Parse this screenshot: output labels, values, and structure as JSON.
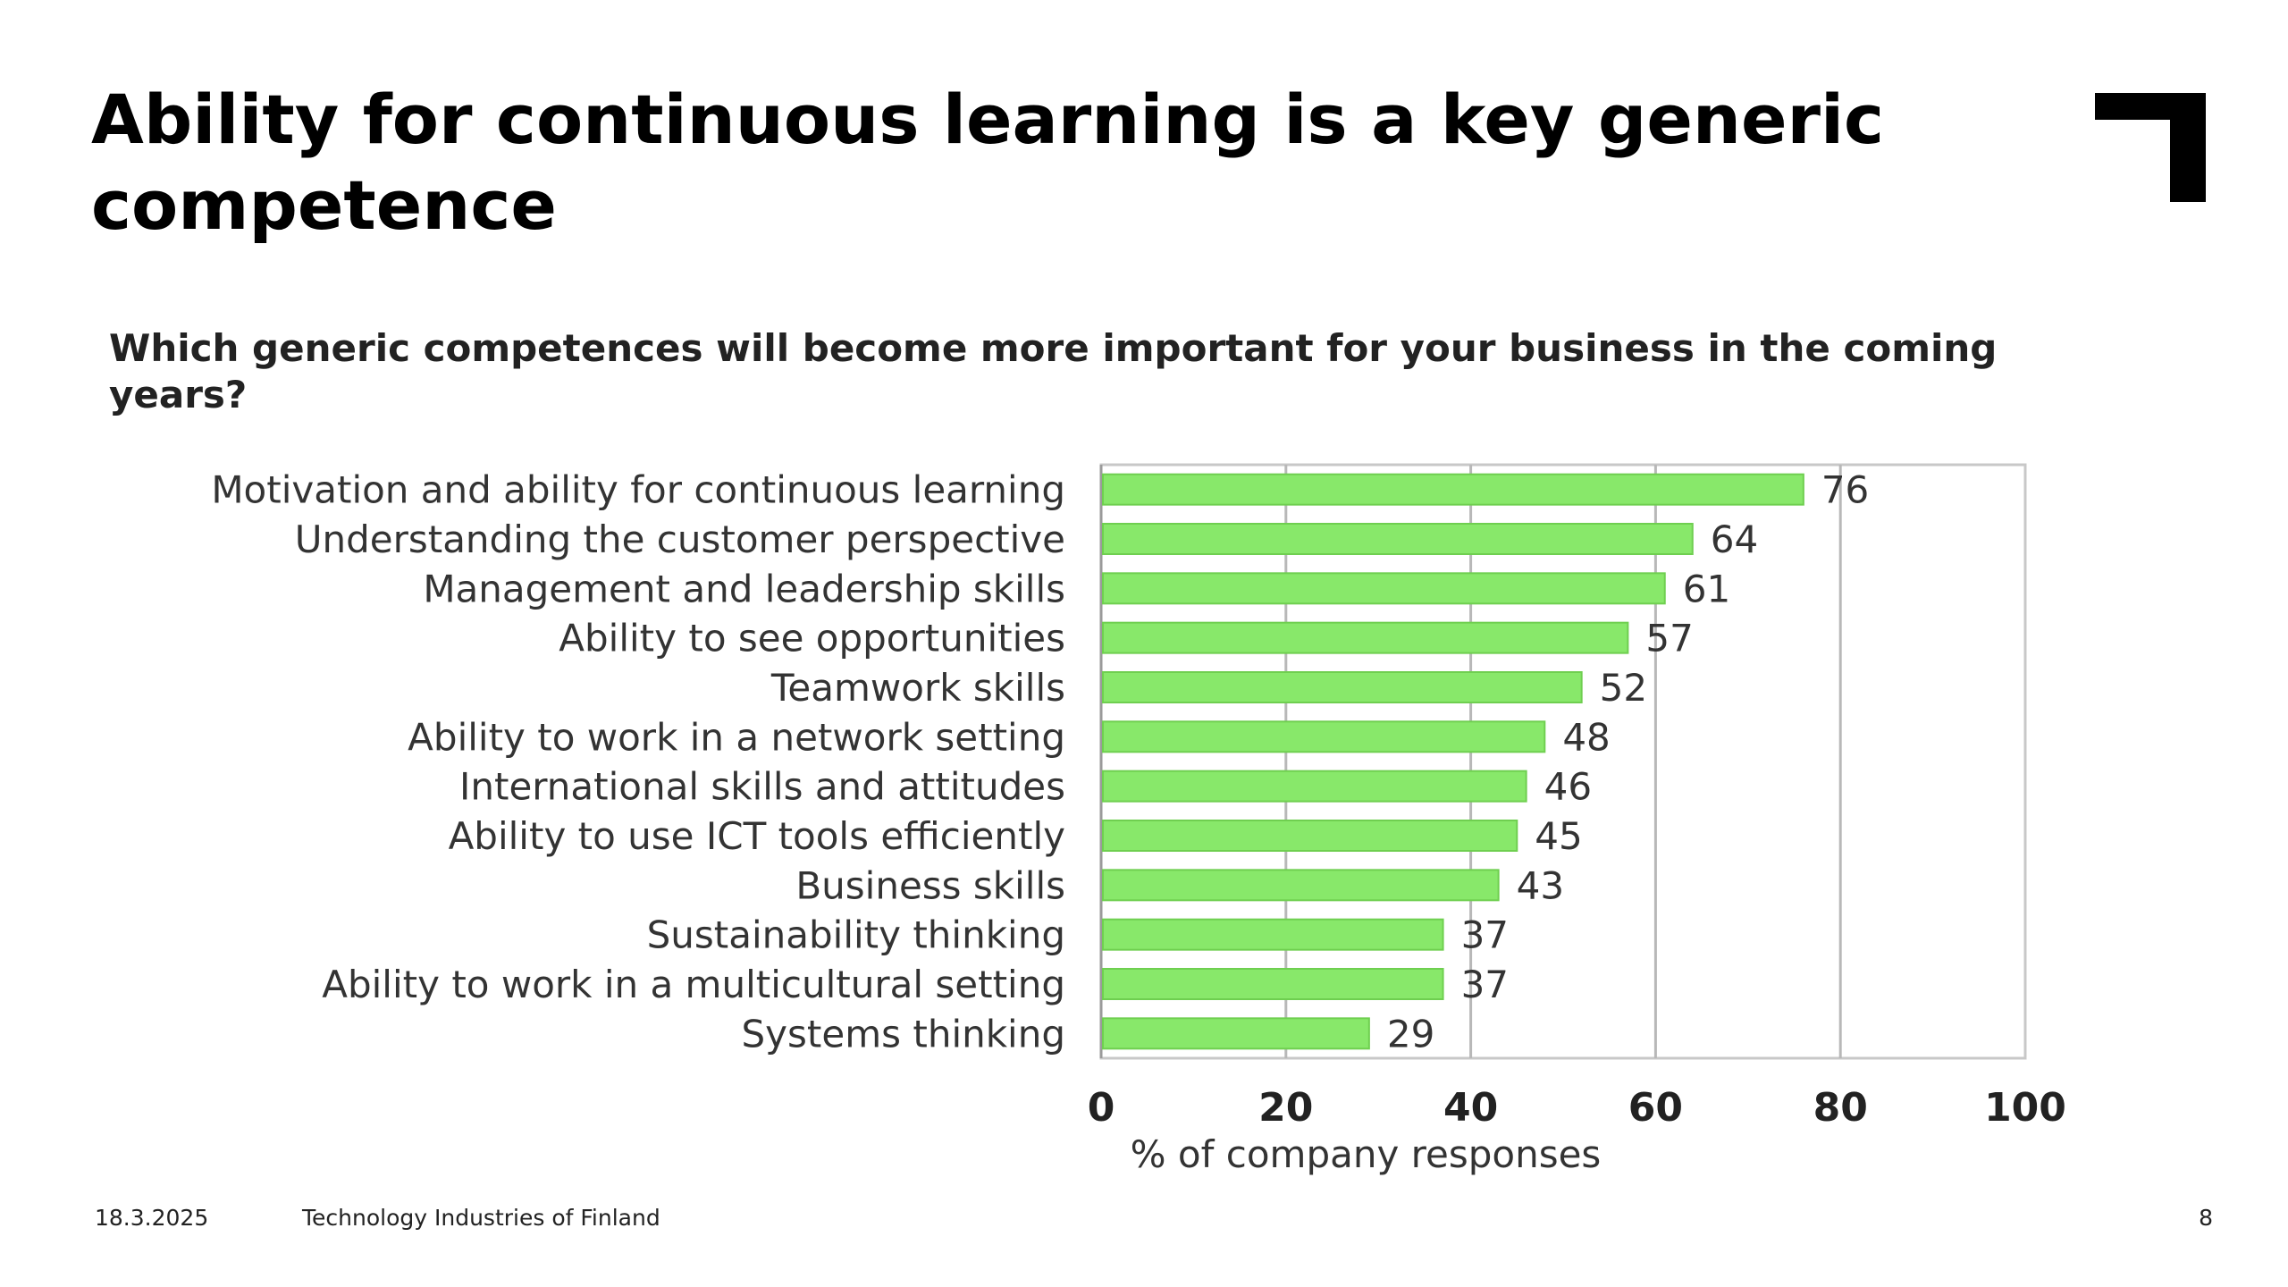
{
  "slide": {
    "title": "Ability for continuous learning is a key generic competence",
    "question": "Which generic competences will become more important for your business in the coming years?"
  },
  "footer": {
    "date": "18.3.2025",
    "organization": "Technology Industries of Finland",
    "page_number": "8"
  },
  "colors": {
    "bar": "#88e86a",
    "bar_stroke": "#6fcf50",
    "grid": "#b8b8b8",
    "text": "#333333"
  },
  "chart_data": {
    "type": "bar",
    "orientation": "horizontal",
    "categories": [
      "Motivation and ability for continuous learning",
      "Understanding the customer perspective",
      "Management and leadership skills",
      "Ability to see opportunities",
      "Teamwork skills",
      "Ability to work in a network setting",
      "International skills and attitudes",
      "Ability to use ICT tools efficiently",
      "Business skills",
      "Sustainability thinking",
      "Ability to work in a multicultural setting",
      "Systems thinking"
    ],
    "values": [
      76,
      64,
      61,
      57,
      52,
      48,
      46,
      45,
      43,
      37,
      37,
      29
    ],
    "xlabel": "% of company responses",
    "xlim": [
      0,
      100
    ],
    "xticks": [
      0,
      20,
      40,
      60,
      80,
      100
    ],
    "grid": true,
    "legend": "none"
  }
}
